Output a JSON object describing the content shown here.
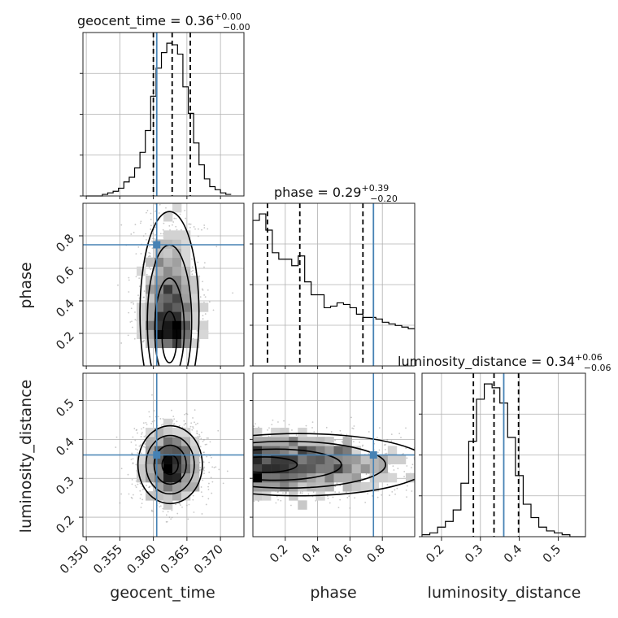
{
  "chart_data": {
    "type": "corner",
    "colors": {
      "truth": "#4682b4",
      "hist": "#000000",
      "contour": "#000000",
      "scatter": "#9a9a9a"
    },
    "parameters": [
      "geocent_time",
      "phase",
      "luminosity_distance"
    ],
    "truths": {
      "geocent_time": 0.3605,
      "phase": 0.745,
      "luminosity_distance": 0.36
    },
    "axes": {
      "geocent_time": {
        "range": [
          0.3495,
          0.3735
        ],
        "ticks": [
          0.35,
          0.355,
          0.36,
          0.365,
          0.37
        ],
        "tick_labels": [
          "0.350",
          "0.355",
          "0.360",
          "0.365",
          "0.370"
        ]
      },
      "phase": {
        "range": [
          0.0,
          1.0
        ],
        "ticks": [
          0.2,
          0.4,
          0.6,
          0.8
        ],
        "tick_labels": [
          "0.2",
          "0.4",
          "0.6",
          "0.8"
        ]
      },
      "luminosity_distance": {
        "range": [
          0.15,
          0.57
        ],
        "ticks": [
          0.2,
          0.3,
          0.4,
          0.5
        ],
        "tick_labels": [
          "0.2",
          "0.3",
          "0.4",
          "0.5"
        ]
      }
    },
    "axis_labels": {
      "x": [
        "geocent_time",
        "phase",
        "luminosity_distance"
      ],
      "y": [
        "phase",
        "luminosity_distance"
      ]
    },
    "titles": [
      {
        "param": "geocent_time",
        "text": "geocent_time = 0.36",
        "upper": "+0.00",
        "lower": "−0.00",
        "median": 0.3628,
        "q_low": 0.36,
        "q_high": 0.3655
      },
      {
        "param": "phase",
        "text": "phase = 0.29",
        "upper": "+0.39",
        "lower": "−0.20",
        "median": 0.29,
        "q_low": 0.09,
        "q_high": 0.68
      },
      {
        "param": "luminosity_distance",
        "text": "luminosity_distance = 0.34",
        "upper": "+0.06",
        "lower": "−0.06",
        "median": 0.335,
        "q_low": 0.282,
        "q_high": 0.398
      }
    ],
    "histograms": {
      "geocent_time": {
        "edges": [
          0.35,
          0.3508,
          0.3516,
          0.3524,
          0.3532,
          0.354,
          0.3548,
          0.3556,
          0.3564,
          0.3572,
          0.358,
          0.3588,
          0.3596,
          0.3604,
          0.3612,
          0.362,
          0.3628,
          0.3636,
          0.3644,
          0.3652,
          0.366,
          0.3668,
          0.3676,
          0.3684,
          0.3692,
          0.37,
          0.3708,
          0.3716
        ],
        "counts": [
          0,
          0,
          0,
          1,
          2,
          3,
          5,
          9,
          12,
          18,
          28,
          42,
          64,
          82,
          92,
          98,
          97,
          91,
          70,
          53,
          34,
          20,
          11,
          6,
          4,
          2,
          1
        ]
      },
      "phase": {
        "edges": [
          0.0,
          0.04,
          0.08,
          0.12,
          0.16,
          0.2,
          0.24,
          0.28,
          0.32,
          0.36,
          0.4,
          0.44,
          0.48,
          0.52,
          0.56,
          0.6,
          0.64,
          0.68,
          0.72,
          0.76,
          0.8,
          0.84,
          0.88,
          0.92,
          0.96,
          1.0
        ],
        "counts": [
          90,
          94,
          84,
          70,
          66,
          66,
          62,
          68,
          52,
          44,
          44,
          36,
          37,
          39,
          38,
          36,
          32,
          30,
          30,
          29,
          27,
          26,
          25,
          24,
          23
        ]
      },
      "luminosity_distance": {
        "edges": [
          0.15,
          0.17,
          0.19,
          0.21,
          0.23,
          0.25,
          0.27,
          0.29,
          0.31,
          0.33,
          0.35,
          0.37,
          0.39,
          0.41,
          0.43,
          0.45,
          0.47,
          0.49,
          0.51,
          0.53,
          0.55,
          0.57
        ],
        "counts": [
          1,
          2,
          5,
          8,
          14,
          28,
          50,
          72,
          80,
          78,
          70,
          52,
          32,
          17,
          10,
          5,
          3,
          2,
          1,
          0,
          0
        ]
      }
    },
    "density_2d": [
      {
        "x": "geocent_time",
        "y": "phase",
        "center": [
          0.3624,
          0.13
        ],
        "sigma": [
          0.0022,
          0.35
        ]
      },
      {
        "x": "geocent_time",
        "y": "luminosity_distance",
        "center": [
          0.3625,
          0.335
        ],
        "sigma": [
          0.0024,
          0.05
        ]
      },
      {
        "x": "phase",
        "y": "luminosity_distance",
        "center": [
          0.1,
          0.335
        ],
        "sigma": [
          0.45,
          0.04
        ]
      }
    ]
  }
}
